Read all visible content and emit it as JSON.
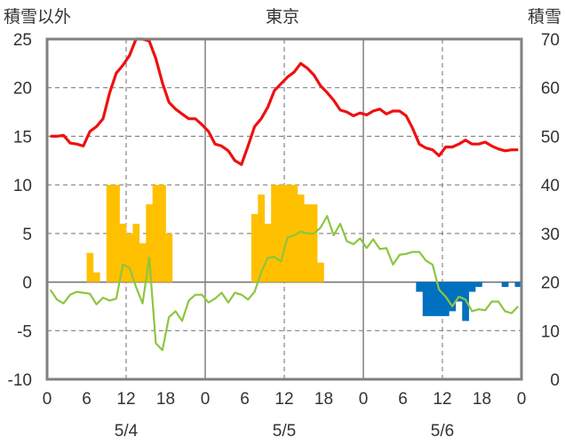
{
  "chart_data": {
    "type": "bar+line",
    "title": "東京",
    "left_axis_label": "積雪以外",
    "right_axis_label": "積雪",
    "left_ylim": [
      -10,
      25
    ],
    "left_ticks": [
      "25",
      "20",
      "15",
      "10",
      "5",
      "0",
      "-5",
      "-10"
    ],
    "right_ylim": [
      0,
      70
    ],
    "right_ticks": [
      "70",
      "60",
      "50",
      "40",
      "30",
      "20",
      "10",
      "0"
    ],
    "x_tick_labels": [
      "0",
      "6",
      "12",
      "18",
      "0",
      "6",
      "12",
      "18",
      "0",
      "6",
      "12",
      "18",
      "0"
    ],
    "date_labels": [
      "5/4",
      "5/5",
      "5/6"
    ],
    "hours": 72,
    "colors": {
      "red_line": "#ee1111",
      "green_line": "#8dc63f",
      "orange_bars": "#ffc000",
      "blue_bars": "#0070c0",
      "frame": "#808080"
    },
    "red_series": [
      15,
      15,
      15.1,
      14.3,
      14.2,
      14,
      15.5,
      16,
      16.8,
      19.5,
      21.5,
      22.3,
      23.3,
      25,
      25,
      24.8,
      23,
      20.5,
      18.5,
      17.8,
      17.3,
      16.8,
      16.8,
      16.2,
      15.5,
      14.2,
      14,
      13.5,
      12.5,
      12.1,
      14,
      16,
      16.8,
      18,
      19.7,
      20.4,
      21.1,
      21.6,
      22.5,
      22,
      21.3,
      20.2,
      19.5,
      18.7,
      17.7,
      17.5,
      17.1,
      17.4,
      17.2,
      17.6,
      17.8,
      17.3,
      17.6,
      17.6,
      17.1,
      15.8,
      14.2,
      13.8,
      13.6,
      13,
      13.9,
      13.9,
      14.2,
      14.6,
      14.2,
      14.2,
      14.4,
      14,
      13.7,
      13.5,
      13.6,
      13.6
    ],
    "green_series": [
      -0.8,
      -1.8,
      -2.2,
      -1.3,
      -1,
      -1.1,
      -1.2,
      -2.3,
      -1.6,
      -1.9,
      -1.7,
      1.8,
      1.5,
      -0.5,
      -2.2,
      2.5,
      -6.3,
      -7,
      -3.6,
      -3,
      -4,
      -1.9,
      -1.3,
      -1.3,
      -2.1,
      -1.7,
      -1.1,
      -2.1,
      -1.1,
      -1.3,
      -1.8,
      -1,
      1,
      2.5,
      2.6,
      2.1,
      4.6,
      4.8,
      5.2,
      5,
      5,
      5.6,
      6.8,
      4.8,
      6,
      4.2,
      3.9,
      4.5,
      3.5,
      4.4,
      3.4,
      3.5,
      1.8,
      2.8,
      2.9,
      3.1,
      3.1,
      2.2,
      1.8,
      -0.8,
      -1.5,
      -2.5,
      -1.5,
      -1.8,
      -3,
      -2.8,
      -2.9,
      -2,
      -2,
      -3,
      -3.2,
      -2.5
    ],
    "orange_bars": [
      0,
      0,
      0,
      0,
      0,
      0,
      3,
      1,
      0,
      10,
      10,
      6,
      5,
      6,
      4,
      8,
      10,
      10,
      5,
      0,
      0,
      0,
      0,
      0,
      0,
      0,
      0,
      0,
      0,
      0,
      0,
      7,
      9,
      6,
      10,
      10,
      10,
      10,
      9,
      8,
      8,
      2,
      0,
      0,
      0,
      0,
      0,
      0,
      0,
      0,
      0,
      0,
      0,
      0,
      0,
      0,
      0,
      0,
      0,
      0,
      0,
      0,
      0,
      0,
      0,
      0,
      0,
      0,
      0,
      0,
      0,
      0
    ],
    "blue_bars": [
      0,
      0,
      0,
      0,
      0,
      0,
      0,
      0,
      0,
      0,
      0,
      0,
      0,
      0,
      0,
      0,
      0,
      0,
      0,
      0,
      0,
      0,
      0,
      0,
      0,
      0,
      0,
      0,
      0,
      0,
      0,
      0,
      0,
      0,
      0,
      0,
      0,
      0,
      0,
      0,
      0,
      0,
      0,
      0,
      0,
      0,
      0,
      0,
      0,
      0,
      0,
      0,
      0,
      0,
      0,
      0,
      -1,
      -3.5,
      -3.5,
      -3.5,
      -3.5,
      -3,
      -2,
      -4,
      -1,
      -0.5,
      0,
      0,
      0,
      -0.5,
      0,
      -0.5
    ]
  }
}
